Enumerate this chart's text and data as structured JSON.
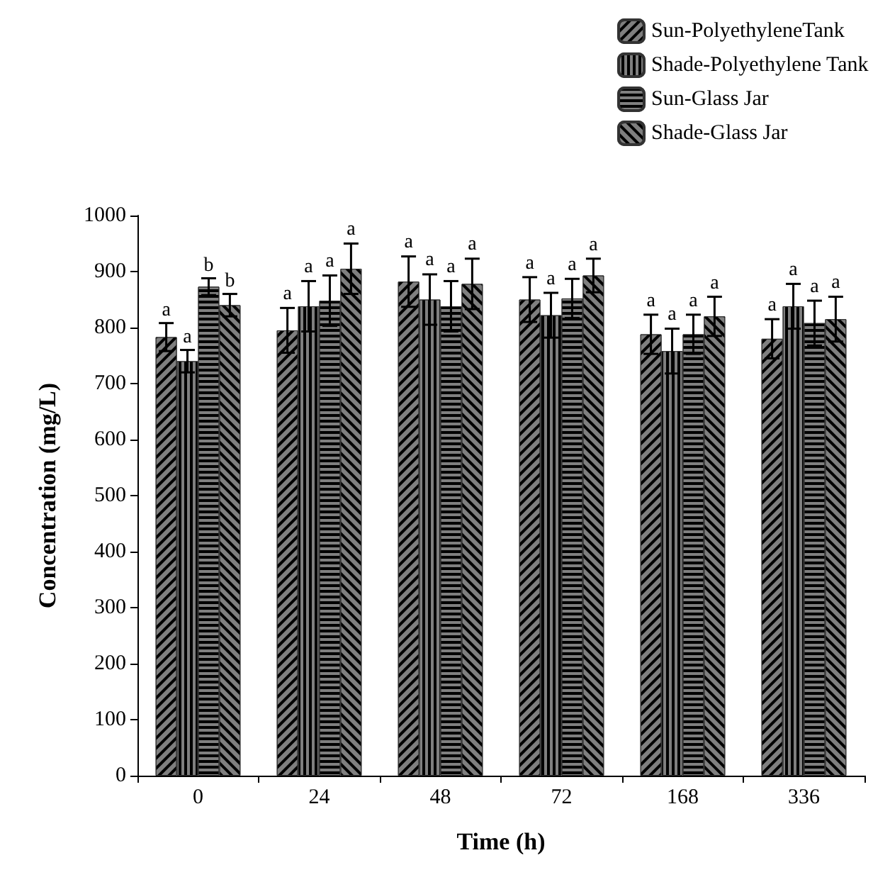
{
  "chart_data": {
    "type": "bar",
    "xlabel": "Time (h)",
    "ylabel": "Concentration (mg/L)",
    "categories": [
      "0",
      "24",
      "48",
      "72",
      "168",
      "336"
    ],
    "series": [
      {
        "name": "Sun-PolyethyleneTank",
        "color": "#7f7f7f",
        "values": [
          783,
          795,
          882,
          850,
          788,
          780
        ],
        "errors": [
          25,
          40,
          45,
          40,
          35,
          35
        ],
        "value_labels": [
          "a",
          "a",
          "a",
          "a",
          "a",
          "a"
        ]
      },
      {
        "name": "Shade-Polyethylene Tank",
        "color": "#7f7f7f",
        "values": [
          740,
          838,
          850,
          822,
          758,
          838
        ],
        "errors": [
          20,
          45,
          45,
          40,
          40,
          40
        ],
        "value_labels": [
          "a",
          "a",
          "a",
          "a",
          "a",
          "a"
        ]
      },
      {
        "name": "Sun-Glass Jar",
        "color": "#7f7f7f",
        "values": [
          873,
          848,
          838,
          852,
          788,
          808
        ],
        "errors": [
          15,
          45,
          45,
          35,
          35,
          40
        ],
        "value_labels": [
          "b",
          "a",
          "a",
          "a",
          "a",
          "a"
        ]
      },
      {
        "name": "Shade-Glass Jar",
        "color": "#7f7f7f",
        "values": [
          840,
          905,
          878,
          893,
          820,
          815
        ],
        "errors": [
          20,
          45,
          45,
          30,
          35,
          40
        ],
        "value_labels": [
          "b",
          "a",
          "a",
          "a",
          "a",
          "a"
        ]
      }
    ],
    "ylim": [
      0,
      1000
    ],
    "yticks": [
      0,
      100,
      200,
      300,
      400,
      500,
      600,
      700,
      800,
      900,
      1000
    ],
    "grid": false,
    "legend": "top right"
  }
}
